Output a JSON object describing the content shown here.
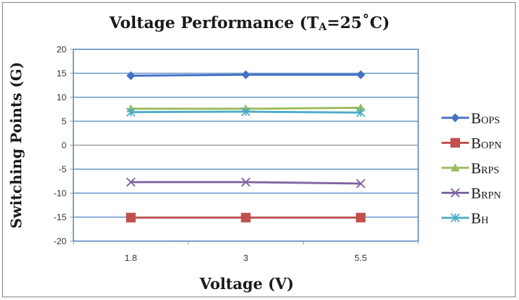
{
  "chart_data": {
    "type": "line",
    "title": {
      "main": "Voltage Performance (T",
      "sub": "A",
      "tail": "=25˚C)"
    },
    "xlabel": "Voltage (V)",
    "ylabel": "Switching Points (G)",
    "categories": [
      "1.8",
      "3",
      "5.5"
    ],
    "ylim": [
      -20,
      20
    ],
    "yticks": [
      20,
      15,
      10,
      5,
      0,
      -5,
      -10,
      -15,
      -20
    ],
    "grid": true,
    "legend_position": "right",
    "series": [
      {
        "name": "B",
        "name_sub": "OPS",
        "marker": "diamond",
        "color": "#4472C4",
        "values": [
          14.5,
          14.7,
          14.7
        ]
      },
      {
        "name": "B",
        "name_sub": "OPN",
        "marker": "square",
        "color": "#C0504D",
        "values": [
          -15.1,
          -15.1,
          -15.1
        ]
      },
      {
        "name": "B",
        "name_sub": "RPS",
        "marker": "triangle",
        "color": "#9BBB59",
        "values": [
          7.6,
          7.6,
          7.8
        ]
      },
      {
        "name": "B",
        "name_sub": "RPN",
        "marker": "x",
        "color": "#8064A2",
        "values": [
          -7.7,
          -7.7,
          -8.0
        ]
      },
      {
        "name": "B",
        "name_sub": "H",
        "marker": "star",
        "color": "#4BACC6",
        "values": [
          6.9,
          7.0,
          6.8
        ]
      }
    ]
  }
}
